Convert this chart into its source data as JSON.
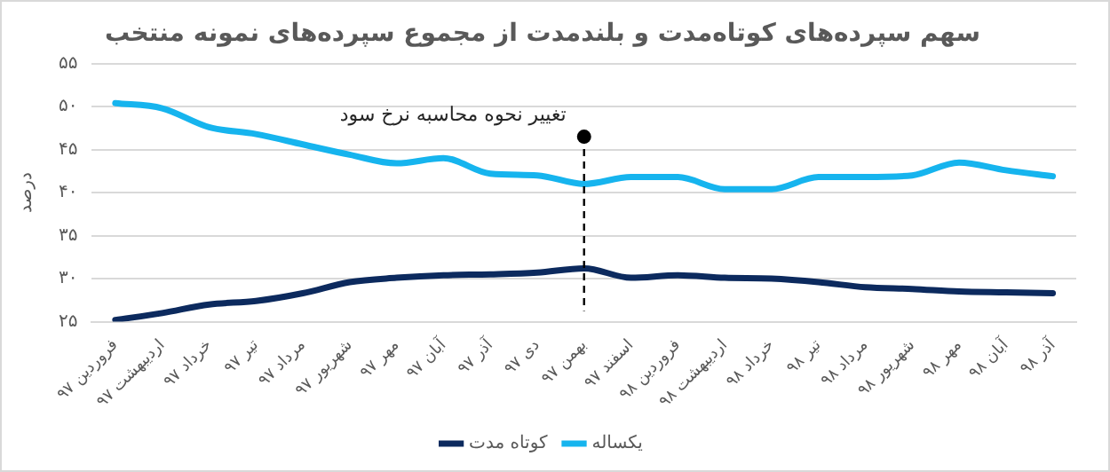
{
  "chart_data": {
    "type": "line",
    "title": "سهم سپرده‌های کوتاه‌مدت و بلندمدت از مجموع سپرده‌های نمونه منتخب",
    "ylabel": "درصد",
    "categories": [
      "فروردین ۹۷",
      "اردیبهشت ۹۷",
      "خرداد ۹۷",
      "تیر ۹۷",
      "مرداد ۹۷",
      "شهریور ۹۷",
      "مهر ۹۷",
      "آبان ۹۷",
      "آذر ۹۷",
      "دی ۹۷",
      "بهمن ۹۷",
      "اسفند ۹۷",
      "فروردین ۹۸",
      "اردیبهشت ۹۸",
      "خرداد ۹۸",
      "تیر ۹۸",
      "مرداد ۹۸",
      "شهریور ۹۸",
      "مهر ۹۸",
      "آبان ۹۸",
      "آذر ۹۸"
    ],
    "series": [
      {
        "name": "کوتاه مدت",
        "color": "#0c2a5e",
        "values": [
          25.2,
          26,
          27,
          27.4,
          28.3,
          29.6,
          30.1,
          30.4,
          30.5,
          30.7,
          31.2,
          30.1,
          30.4,
          30.1,
          30,
          29.6,
          29,
          28.8,
          28.5,
          28.4,
          28.3
        ]
      },
      {
        "name": "یکساله",
        "color": "#16b4ee",
        "values": [
          50.4,
          49.8,
          47.6,
          46.8,
          45.6,
          44.4,
          43.4,
          44,
          42.2,
          42,
          41,
          41.8,
          41.8,
          40.4,
          40.4,
          41.8,
          41.8,
          42,
          43.5,
          42.6,
          41.9
        ]
      }
    ],
    "ylim": [
      25,
      55
    ],
    "yticks": [
      {
        "value": 25,
        "label": "۲۵"
      },
      {
        "value": 30,
        "label": "۳۰"
      },
      {
        "value": 35,
        "label": "۳۵"
      },
      {
        "value": 40,
        "label": "۴۰"
      },
      {
        "value": 45,
        "label": "۴۵"
      },
      {
        "value": 50,
        "label": "۵۰"
      },
      {
        "value": 55,
        "label": "۵۵"
      }
    ],
    "ref_lines": [
      {
        "axis": "x",
        "value": "بهمن ۹۷",
        "color": "#000000",
        "line_style": "dashed"
      }
    ],
    "annotations": [
      {
        "text": "تغییر نحوه محاسبه نرخ سود",
        "x": "بهمن ۹۷",
        "y": 46.5
      }
    ],
    "grid": "y",
    "legend": "bottom",
    "marker": "none",
    "line_style": "solid"
  }
}
